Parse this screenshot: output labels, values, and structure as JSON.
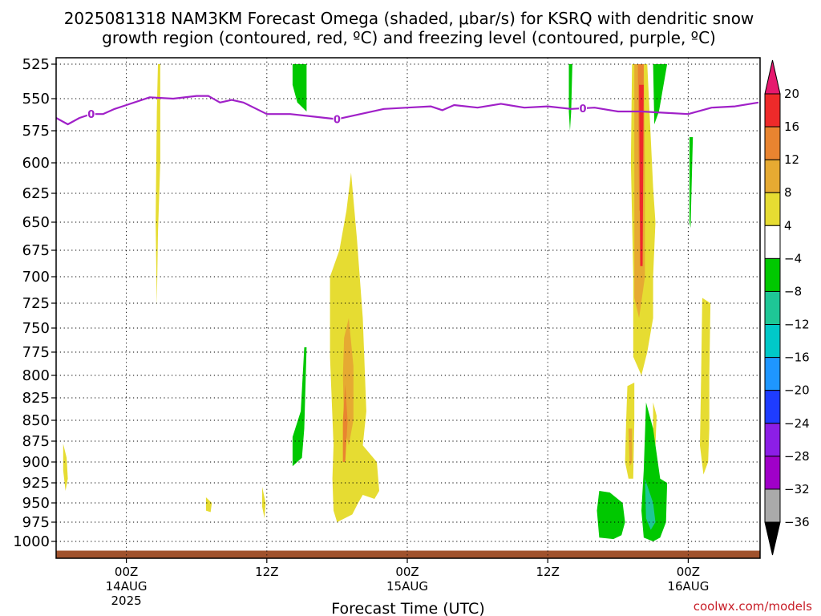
{
  "chart_data": {
    "type": "heatmap",
    "title_line1": "2025081318 NAM3KM Forecast Omega (shaded, μbar/s) for KSRQ with dendritic snow",
    "title_line2": "growth region (contoured, red, ºC) and freezing level (contoured, purple, ºC)",
    "xlabel": "Forecast Time (UTC)",
    "credit": "coolwx.com/models",
    "x_unit": "forecast hour from 2025081318",
    "xlim": [
      0,
      60
    ],
    "x_ticks": [
      {
        "hour": 6,
        "label": "00Z",
        "date": "14AUG",
        "year": "2025"
      },
      {
        "hour": 18,
        "label": "12Z",
        "date": "",
        "year": ""
      },
      {
        "hour": 30,
        "label": "00Z",
        "date": "15AUG",
        "year": ""
      },
      {
        "hour": 42,
        "label": "12Z",
        "date": "",
        "year": ""
      },
      {
        "hour": 54,
        "label": "00Z",
        "date": "16AUG",
        "year": ""
      }
    ],
    "y_unit": "hPa",
    "y_levels": [
      525,
      550,
      575,
      600,
      625,
      650,
      675,
      700,
      725,
      750,
      775,
      800,
      825,
      850,
      875,
      900,
      925,
      950,
      975,
      1000
    ],
    "ylim": [
      1000,
      525
    ],
    "grid": true,
    "surface_level_hpa": 1012,
    "colorbar": {
      "ticks": [
        "20",
        "16",
        "12",
        "8",
        "4",
        "−4",
        "−8",
        "−12",
        "−16",
        "−20",
        "−24",
        "−28",
        "−32",
        "−36"
      ],
      "bins": [
        {
          "range": "16 to 20",
          "color": "#ee2a2a"
        },
        {
          "range": "12 to 16",
          "color": "#e98430"
        },
        {
          "range": "8 to 12",
          "color": "#e6aa32"
        },
        {
          "range": "4 to 8",
          "color": "#e6dc32"
        },
        {
          "range": "-4 to 4",
          "color": "#ffffff"
        },
        {
          "range": "-8 to -4",
          "color": "#00c800"
        },
        {
          "range": "-12 to -8",
          "color": "#1ec796"
        },
        {
          "range": "-16 to -12",
          "color": "#00c8c8"
        },
        {
          "range": "-20 to -16",
          "color": "#1e96ff"
        },
        {
          "range": "-24 to -20",
          "color": "#1e3cff"
        },
        {
          "range": "-28 to -24",
          "color": "#8c1ee6"
        },
        {
          "range": "-32 to -28",
          "color": "#a000c8"
        },
        {
          "range": "-36 to -32",
          "color": "#aaaaaa"
        }
      ],
      "over_color": "#e6196e",
      "under_color": "#000000"
    },
    "freezing_level": {
      "value_label": "0",
      "color": "#a020c8",
      "points": [
        [
          0,
          565
        ],
        [
          1,
          570
        ],
        [
          2,
          565
        ],
        [
          3,
          562
        ],
        [
          4,
          562
        ],
        [
          5,
          558
        ],
        [
          6,
          555
        ],
        [
          8,
          549
        ],
        [
          10,
          550
        ],
        [
          12,
          548
        ],
        [
          13,
          548
        ],
        [
          14,
          553
        ],
        [
          15,
          551
        ],
        [
          16,
          553
        ],
        [
          18,
          562
        ],
        [
          20,
          562
        ],
        [
          22,
          564
        ],
        [
          24,
          566
        ],
        [
          26,
          562
        ],
        [
          28,
          558
        ],
        [
          30,
          557
        ],
        [
          32,
          556
        ],
        [
          33,
          559
        ],
        [
          34,
          555
        ],
        [
          36,
          557
        ],
        [
          38,
          554
        ],
        [
          40,
          557
        ],
        [
          42,
          556
        ],
        [
          44,
          558
        ],
        [
          46,
          557
        ],
        [
          48,
          560
        ],
        [
          50,
          560
        ],
        [
          52,
          561
        ],
        [
          54,
          562
        ],
        [
          56,
          557
        ],
        [
          58,
          556
        ],
        [
          60,
          553
        ]
      ],
      "label_hours": [
        3,
        24,
        45
      ]
    },
    "shaded_regions": [
      {
        "value": 4,
        "points": [
          [
            8.7,
            525
          ],
          [
            8.9,
            525
          ],
          [
            8.9,
            600
          ],
          [
            8.7,
            660
          ],
          [
            8.6,
            728
          ],
          [
            8.5,
            650
          ],
          [
            8.6,
            560
          ]
        ]
      },
      {
        "value": 4,
        "points": [
          [
            0.6,
            878
          ],
          [
            0.9,
            895
          ],
          [
            1.0,
            920
          ],
          [
            0.8,
            935
          ],
          [
            0.6,
            910
          ]
        ]
      },
      {
        "value": 4,
        "points": [
          [
            12.8,
            943
          ],
          [
            13.3,
            950
          ],
          [
            13.2,
            962
          ],
          [
            12.8,
            960
          ]
        ]
      },
      {
        "value": 4,
        "points": [
          [
            17.6,
            930
          ],
          [
            17.9,
            950
          ],
          [
            17.8,
            970
          ],
          [
            17.6,
            955
          ]
        ]
      },
      {
        "value": -4,
        "points": [
          [
            20.2,
            525
          ],
          [
            21.4,
            525
          ],
          [
            21.4,
            560
          ],
          [
            20.6,
            553
          ],
          [
            20.2,
            540
          ]
        ]
      },
      {
        "value": -4,
        "points": [
          [
            21.2,
            770
          ],
          [
            21.4,
            770
          ],
          [
            21.2,
            860
          ],
          [
            21.0,
            895
          ],
          [
            20.2,
            905
          ],
          [
            20.2,
            870
          ],
          [
            20.9,
            840
          ]
        ]
      },
      {
        "value": 4,
        "points": [
          [
            25.2,
            608
          ],
          [
            25.7,
            665
          ],
          [
            26.2,
            740
          ],
          [
            26.5,
            840
          ],
          [
            26.2,
            880
          ],
          [
            27.4,
            900
          ],
          [
            27.6,
            935
          ],
          [
            27.2,
            945
          ],
          [
            26.2,
            940
          ],
          [
            25.8,
            950
          ],
          [
            25.3,
            965
          ],
          [
            24.0,
            975
          ],
          [
            23.7,
            960
          ],
          [
            23.6,
            920
          ],
          [
            23.7,
            880
          ],
          [
            23.4,
            780
          ],
          [
            23.4,
            700
          ],
          [
            24.2,
            675
          ],
          [
            24.8,
            640
          ]
        ]
      },
      {
        "value": 8,
        "points": [
          [
            25.0,
            740
          ],
          [
            25.4,
            790
          ],
          [
            25.4,
            850
          ],
          [
            25.0,
            880
          ],
          [
            24.6,
            860
          ],
          [
            24.5,
            800
          ],
          [
            24.6,
            760
          ]
        ]
      },
      {
        "value": 12,
        "points": [
          [
            24.7,
            810
          ],
          [
            24.9,
            850
          ],
          [
            24.7,
            900
          ],
          [
            24.5,
            900
          ],
          [
            24.5,
            850
          ]
        ]
      },
      {
        "value": -4,
        "points": [
          [
            43.8,
            525
          ],
          [
            44.1,
            525
          ],
          [
            44.0,
            560
          ],
          [
            43.9,
            575
          ],
          [
            43.8,
            560
          ]
        ]
      },
      {
        "value": 4,
        "points": [
          [
            49.2,
            525
          ],
          [
            50.5,
            525
          ],
          [
            51.0,
            620
          ],
          [
            51.2,
            650
          ],
          [
            51.0,
            700
          ],
          [
            51.0,
            740
          ],
          [
            50.5,
            775
          ],
          [
            50.0,
            800
          ],
          [
            49.3,
            780
          ],
          [
            49.3,
            700
          ],
          [
            49.1,
            600
          ]
        ]
      },
      {
        "value": 8,
        "points": [
          [
            49.4,
            525
          ],
          [
            50.2,
            525
          ],
          [
            50.3,
            600
          ],
          [
            50.3,
            700
          ],
          [
            49.8,
            740
          ],
          [
            49.4,
            720
          ]
        ]
      },
      {
        "value": 12,
        "points": [
          [
            49.7,
            525
          ],
          [
            50.2,
            525
          ],
          [
            50.1,
            640
          ],
          [
            49.8,
            640
          ]
        ]
      },
      {
        "value": 16,
        "points": [
          [
            49.8,
            540
          ],
          [
            50.2,
            540
          ],
          [
            50.1,
            690
          ],
          [
            49.9,
            690
          ]
        ]
      },
      {
        "value": -4,
        "points": [
          [
            51.0,
            525
          ],
          [
            52.2,
            525
          ],
          [
            51.5,
            560
          ],
          [
            51.1,
            570
          ]
        ]
      },
      {
        "value": -4,
        "points": [
          [
            54.1,
            580
          ],
          [
            54.4,
            580
          ],
          [
            54.2,
            655
          ],
          [
            54.1,
            650
          ]
        ]
      },
      {
        "value": 4,
        "points": [
          [
            55.2,
            720
          ],
          [
            55.9,
            725
          ],
          [
            55.8,
            800
          ],
          [
            55.8,
            860
          ],
          [
            55.7,
            900
          ],
          [
            55.3,
            915
          ],
          [
            55.0,
            880
          ],
          [
            55.1,
            800
          ]
        ]
      },
      {
        "value": 4,
        "points": [
          [
            48.8,
            812
          ],
          [
            49.4,
            808
          ],
          [
            49.4,
            850
          ],
          [
            49.3,
            920
          ],
          [
            48.9,
            920
          ],
          [
            48.6,
            900
          ],
          [
            48.7,
            850
          ]
        ]
      },
      {
        "value": 8,
        "points": [
          [
            48.9,
            860
          ],
          [
            49.2,
            860
          ],
          [
            49.2,
            900
          ],
          [
            49.0,
            905
          ]
        ]
      },
      {
        "value": 4,
        "points": [
          [
            51.0,
            830
          ],
          [
            51.3,
            845
          ],
          [
            51.2,
            880
          ],
          [
            51.0,
            875
          ]
        ]
      },
      {
        "value": -4,
        "points": [
          [
            50.4,
            830
          ],
          [
            51.0,
            860
          ],
          [
            51.6,
            920
          ],
          [
            52.2,
            925
          ],
          [
            52.1,
            975
          ],
          [
            51.6,
            995
          ],
          [
            51.0,
            1000
          ],
          [
            50.2,
            995
          ],
          [
            50.0,
            960
          ],
          [
            50.2,
            910
          ]
        ]
      },
      {
        "value": -8,
        "points": [
          [
            50.3,
            920
          ],
          [
            51.0,
            950
          ],
          [
            51.2,
            975
          ],
          [
            50.8,
            985
          ],
          [
            50.4,
            970
          ]
        ]
      },
      {
        "value": -4,
        "points": [
          [
            46.4,
            935
          ],
          [
            47.3,
            937
          ],
          [
            48.4,
            950
          ],
          [
            48.6,
            975
          ],
          [
            48.3,
            992
          ],
          [
            47.6,
            997
          ],
          [
            46.4,
            995
          ],
          [
            46.2,
            960
          ]
        ]
      }
    ]
  }
}
